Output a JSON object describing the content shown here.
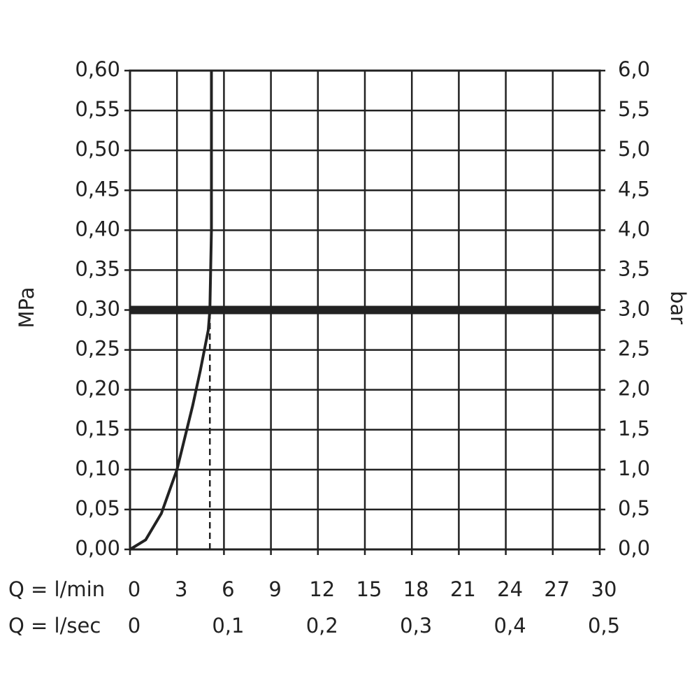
{
  "chart_data": {
    "type": "line",
    "y_label": "MPa",
    "y2_label": "bar",
    "x_label": "Q = l/min",
    "x2_label": "Q = l/sec",
    "xlim": [
      0,
      30
    ],
    "xticks": [
      0,
      3,
      6,
      9,
      12,
      15,
      18,
      21,
      24,
      27,
      30
    ],
    "x2lim": [
      0,
      0.5
    ],
    "x2ticks": [
      0,
      {
        "value": 0.1,
        "label": "0,1"
      },
      {
        "value": 0.2,
        "label": "0,2"
      },
      {
        "value": 0.3,
        "label": "0,3"
      },
      {
        "value": 0.4,
        "label": "0,4"
      },
      {
        "value": 0.5,
        "label": "0,5"
      }
    ],
    "ylim": [
      0,
      0.6
    ],
    "yticks": [
      {
        "value": 0,
        "label": "0,00"
      },
      {
        "value": 0.05,
        "label": "0,05"
      },
      {
        "value": 0.1,
        "label": "0,10"
      },
      {
        "value": 0.15,
        "label": "0,15"
      },
      {
        "value": 0.2,
        "label": "0,20"
      },
      {
        "value": 0.25,
        "label": "0,25"
      },
      {
        "value": 0.3,
        "label": "0,30"
      },
      {
        "value": 0.35,
        "label": "0,35"
      },
      {
        "value": 0.4,
        "label": "0,40"
      },
      {
        "value": 0.45,
        "label": "0,45"
      },
      {
        "value": 0.5,
        "label": "0,50"
      },
      {
        "value": 0.55,
        "label": "0,55"
      },
      {
        "value": 0.6,
        "label": "0,60"
      }
    ],
    "y2lim": [
      0,
      6
    ],
    "y2ticks": [
      {
        "value": 0,
        "label": "0,0"
      },
      {
        "value": 0.5,
        "label": "0,5"
      },
      {
        "value": 1,
        "label": "1,0"
      },
      {
        "value": 1.5,
        "label": "1,5"
      },
      {
        "value": 2,
        "label": "2,0"
      },
      {
        "value": 2.5,
        "label": "2,5"
      },
      {
        "value": 3,
        "label": "3,0"
      },
      {
        "value": 3.5,
        "label": "3,5"
      },
      {
        "value": 4,
        "label": "4,0"
      },
      {
        "value": 4.5,
        "label": "4,5"
      },
      {
        "value": 5,
        "label": "5,0"
      },
      {
        "value": 5.5,
        "label": "5,5"
      },
      {
        "value": 6,
        "label": "6,0"
      }
    ],
    "grid": true,
    "reference_y": 0.3,
    "reference_x": 5.1,
    "series": [
      {
        "color": "#222222",
        "x": [
          0,
          1,
          2,
          3,
          4,
          4.5,
          5,
          5.1,
          5.2,
          5.2
        ],
        "values": [
          0,
          0.012,
          0.045,
          0.1,
          0.18,
          0.225,
          0.275,
          0.3,
          0.4,
          0.6
        ]
      }
    ]
  }
}
